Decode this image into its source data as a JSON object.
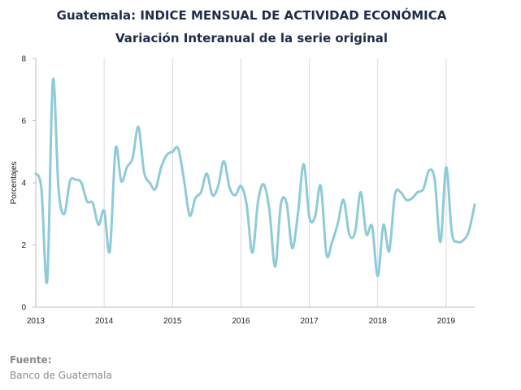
{
  "chart_data": {
    "type": "line",
    "title": "Guatemala: INDICE MENSUAL DE ACTIVIDAD ECONÓMICA",
    "subtitle": "Variación Interanual de la serie original",
    "xlabel": "",
    "ylabel": "Porcentajes",
    "ylim": [
      0,
      8
    ],
    "yticks": [
      0,
      2,
      4,
      6,
      8
    ],
    "xlim": [
      2013.0,
      2019.417
    ],
    "xticks": [
      "2013",
      "2014",
      "2015",
      "2016",
      "2017",
      "2018",
      "2019"
    ],
    "grid": "vertical",
    "line_color": "#8ecbd8",
    "series": [
      {
        "name": "",
        "x": [
          2013.0,
          2013.083,
          2013.167,
          2013.25,
          2013.333,
          2013.417,
          2013.5,
          2013.583,
          2013.667,
          2013.75,
          2013.833,
          2013.917,
          2014.0,
          2014.083,
          2014.167,
          2014.25,
          2014.333,
          2014.417,
          2014.5,
          2014.583,
          2014.667,
          2014.75,
          2014.833,
          2014.917,
          2015.0,
          2015.083,
          2015.167,
          2015.25,
          2015.333,
          2015.417,
          2015.5,
          2015.583,
          2015.667,
          2015.75,
          2015.833,
          2015.917,
          2016.0,
          2016.083,
          2016.167,
          2016.25,
          2016.333,
          2016.417,
          2016.5,
          2016.583,
          2016.667,
          2016.75,
          2016.833,
          2016.917,
          2017.0,
          2017.083,
          2017.167,
          2017.25,
          2017.333,
          2017.417,
          2017.5,
          2017.583,
          2017.667,
          2017.75,
          2017.833,
          2017.917,
          2018.0,
          2018.083,
          2018.167,
          2018.25,
          2018.333,
          2018.417,
          2018.5,
          2018.583,
          2018.667,
          2018.75,
          2018.833,
          2018.917,
          2019.0,
          2019.083,
          2019.167,
          2019.25,
          2019.333,
          2019.417
        ],
        "values": [
          4.3,
          3.8,
          0.85,
          7.3,
          3.8,
          3.0,
          4.05,
          4.1,
          4.0,
          3.4,
          3.35,
          2.65,
          3.1,
          1.8,
          5.1,
          4.05,
          4.5,
          4.8,
          5.8,
          4.35,
          4.0,
          3.8,
          4.5,
          4.9,
          5.0,
          5.1,
          4.1,
          2.95,
          3.5,
          3.7,
          4.3,
          3.6,
          3.9,
          4.7,
          3.85,
          3.6,
          3.9,
          3.3,
          1.75,
          3.4,
          3.95,
          3.1,
          1.3,
          3.3,
          3.35,
          1.9,
          3.0,
          4.6,
          2.9,
          2.9,
          3.9,
          1.7,
          2.1,
          2.7,
          3.45,
          2.35,
          2.4,
          3.7,
          2.35,
          2.6,
          1.0,
          2.65,
          1.8,
          3.6,
          3.7,
          3.45,
          3.5,
          3.7,
          3.8,
          4.4,
          4.1,
          2.1,
          4.5,
          2.4,
          2.1,
          2.15,
          2.45,
          3.3
        ]
      }
    ]
  },
  "source": {
    "label": "Fuente:",
    "text": "Banco de Guatemala"
  }
}
